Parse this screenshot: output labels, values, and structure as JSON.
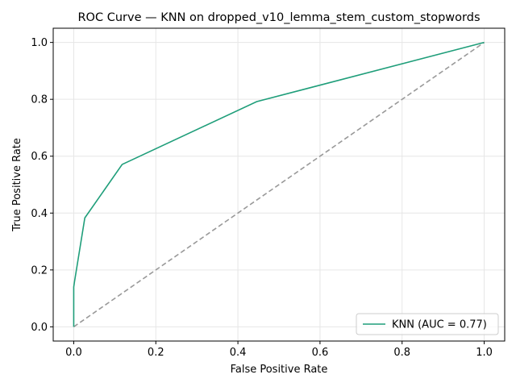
{
  "chart_data": {
    "type": "line",
    "title": "ROC Curve — KNN on dropped_v10_lemma_stem_custom_stopwords",
    "xlabel": "False Positive Rate",
    "ylabel": "True Positive Rate",
    "xlim": [
      -0.05,
      1.05
    ],
    "ylim": [
      -0.05,
      1.05
    ],
    "xticks": [
      0.0,
      0.2,
      0.4,
      0.6,
      0.8,
      1.0
    ],
    "yticks": [
      0.0,
      0.2,
      0.4,
      0.6,
      0.8,
      1.0
    ],
    "xtick_labels": [
      "0.0",
      "0.2",
      "0.4",
      "0.6",
      "0.8",
      "1.0"
    ],
    "ytick_labels": [
      "0.0",
      "0.2",
      "0.4",
      "0.6",
      "0.8",
      "1.0"
    ],
    "grid": true,
    "legend_position": "lower-right",
    "series": [
      {
        "name": "KNN (AUC = 0.77)",
        "color": "#1f9e7a",
        "style": "solid",
        "x": [
          0.0,
          0.0,
          0.0,
          0.0,
          0.002,
          0.027,
          0.118,
          0.446,
          1.0
        ],
        "y": [
          0.0,
          0.09,
          0.12,
          0.14,
          0.16,
          0.383,
          0.571,
          0.792,
          1.0
        ]
      },
      {
        "name": "",
        "color": "#999999",
        "style": "dashed",
        "x": [
          0.0,
          1.0
        ],
        "y": [
          0.0,
          1.0
        ]
      }
    ]
  }
}
